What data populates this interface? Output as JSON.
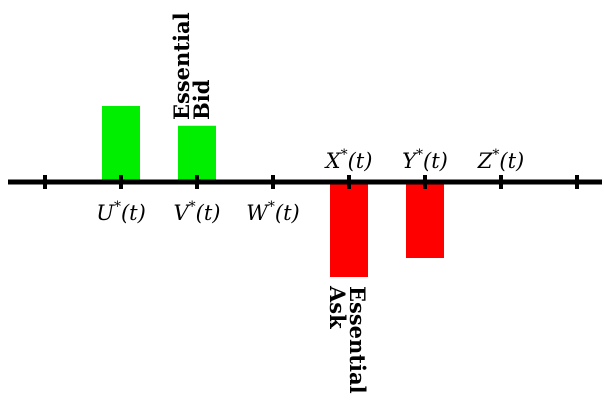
{
  "points": [
    {
      "id": "p0",
      "label": ""
    },
    {
      "id": "U",
      "label": "U*(t)",
      "position": "below"
    },
    {
      "id": "V",
      "label": "V*(t)",
      "position": "below"
    },
    {
      "id": "W",
      "label": "W*(t)",
      "position": "below"
    },
    {
      "id": "X",
      "label": "X*(t)",
      "position": "above"
    },
    {
      "id": "Y",
      "label": "Y*(t)",
      "position": "above"
    },
    {
      "id": "Z",
      "label": "Z*(t)",
      "position": "above"
    },
    {
      "id": "p7",
      "label": ""
    }
  ],
  "bars": [
    {
      "id": "bar-U",
      "at": "U",
      "side": "bid",
      "magnitude": 1.0,
      "color": "#00ee00"
    },
    {
      "id": "bar-V",
      "at": "V",
      "side": "bid",
      "magnitude": 0.74,
      "color": "#00ee00"
    },
    {
      "id": "bar-X",
      "at": "X",
      "side": "ask",
      "magnitude": 1.25,
      "color": "#ff0000"
    },
    {
      "id": "bar-Y",
      "at": "Y",
      "side": "ask",
      "magnitude": 1.0,
      "color": "#ff0000"
    }
  ],
  "annotations": {
    "bid": {
      "line1": "Essential",
      "line2": "Bid"
    },
    "ask": {
      "line1": "Essential",
      "line2": "Ask"
    }
  },
  "colors": {
    "bid": "#00ee00",
    "ask": "#ff0000",
    "axis": "#000000"
  }
}
